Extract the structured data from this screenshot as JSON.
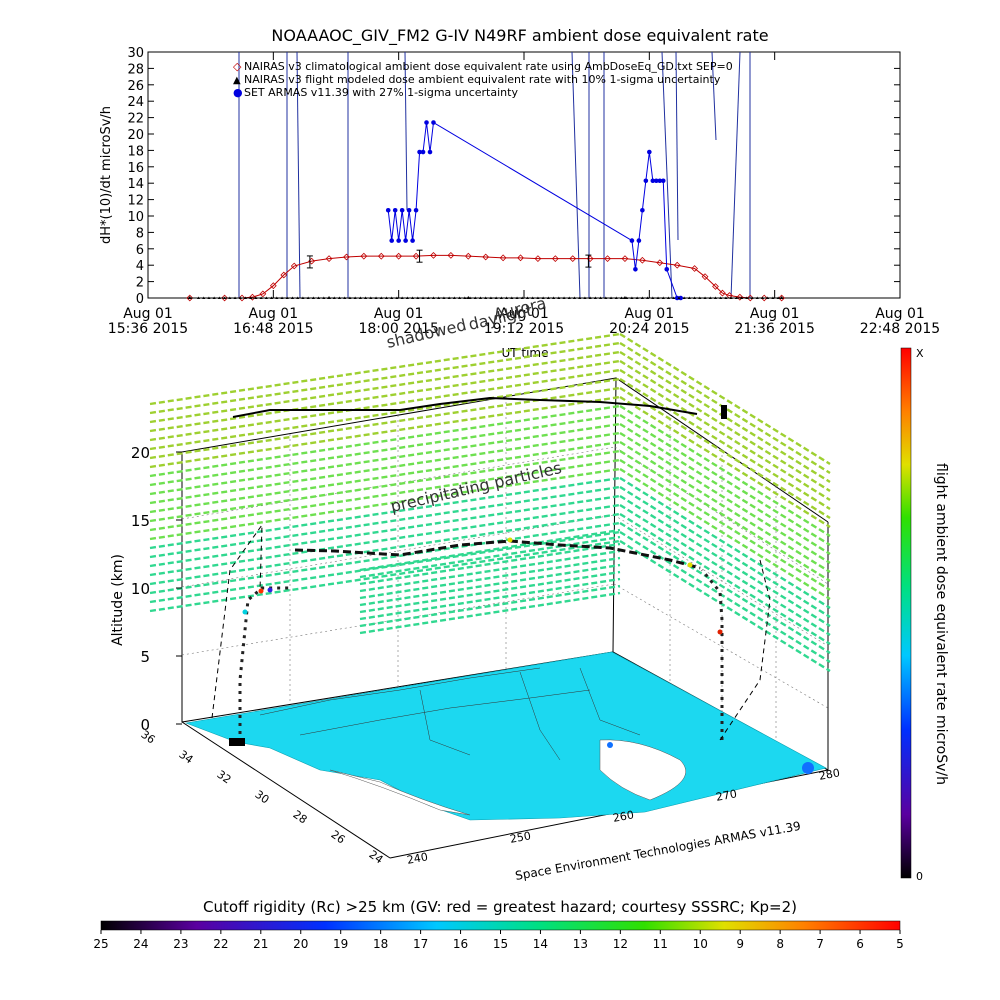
{
  "chart_data": [
    {
      "type": "line",
      "title": "NOAAAOC_GIV_FM2 G-IV   N49RF  ambient dose equivalent rate",
      "xlabel": "UT time",
      "ylabel": "dH*(10)/dt microSv/h",
      "ylim": [
        0,
        30
      ],
      "y_ticks": [
        "0",
        "2",
        "4",
        "6",
        "8",
        "10",
        "12",
        "14",
        "16",
        "18",
        "20",
        "22",
        "24",
        "26",
        "28",
        "30"
      ],
      "x_tick_top": [
        "Aug 01",
        "Aug 01",
        "Aug 01",
        "Aug 01",
        "Aug 01",
        "Aug 01",
        "Aug 01"
      ],
      "x_tick_bottom": [
        "15:36 2015",
        "16:48 2015",
        "18:00 2015",
        "19:12 2015",
        "20:24 2015",
        "21:36 2015",
        "22:48 2015"
      ],
      "overlay_labels": [
        "shadowed",
        "daylight",
        "Aurora"
      ],
      "legend": [
        {
          "symbol": "◇",
          "color": "#c00000",
          "label": "NAIRAS v3 climatological ambient dose equivalent rate using AmbDoseEq_GD.txt SEP=0"
        },
        {
          "symbol": "▲",
          "color": "#000000",
          "label": "NAIRAS v3 flight modeled dose ambient equivalent rate with 10% 1-sigma uncertainty"
        },
        {
          "symbol": "●",
          "color": "#0000e0",
          "label": "SET ARMAS v11.39 with 27% 1-sigma uncertainty"
        }
      ],
      "x_range_minutes": [
        936,
        1368
      ],
      "series": [
        {
          "name": "NAIRAS v3 climatological ambient dose equivalent rate using AmbDoseEq_GD.txt SEP=0",
          "color": "#c00000",
          "x": [
            960,
            980,
            990,
            996,
            1002,
            1008,
            1014,
            1020,
            1030,
            1040,
            1050,
            1060,
            1070,
            1080,
            1090,
            1100,
            1110,
            1120,
            1130,
            1140,
            1150,
            1160,
            1170,
            1180,
            1190,
            1200,
            1210,
            1220,
            1230,
            1240,
            1250,
            1256,
            1262,
            1266,
            1270,
            1276,
            1282,
            1290,
            1300
          ],
          "y": [
            0,
            0,
            0,
            0.1,
            0.5,
            1.5,
            2.8,
            3.9,
            4.5,
            4.8,
            5.0,
            5.1,
            5.1,
            5.1,
            5.1,
            5.2,
            5.2,
            5.1,
            5.0,
            4.9,
            4.9,
            4.8,
            4.8,
            4.8,
            4.8,
            4.8,
            4.8,
            4.6,
            4.3,
            4.0,
            3.6,
            2.6,
            1.4,
            0.6,
            0.3,
            0.1,
            0,
            0,
            0
          ]
        },
        {
          "name": "NAIRAS v3 flight modeled dose ambient equivalent rate with 10% 1-sigma uncertainty",
          "color": "#000000",
          "x": [
            960,
            1040,
            1120,
            1210,
            1300
          ],
          "y": [
            0,
            0,
            0,
            0,
            0
          ]
        },
        {
          "name": "SET ARMAS v11.39 with 27% 1-sigma uncertainty",
          "color": "#0000e0",
          "x": [
            1074,
            1076,
            1078,
            1080,
            1082,
            1084,
            1086,
            1088,
            1090,
            1092,
            1094,
            1096,
            1098,
            1100,
            1214,
            1216,
            1218,
            1220,
            1222,
            1224,
            1226,
            1228,
            1230,
            1232,
            1234,
            1240,
            1242
          ],
          "y": [
            10.7,
            7.0,
            10.7,
            7.0,
            10.7,
            7.0,
            10.7,
            7.0,
            10.7,
            17.8,
            17.8,
            21.4,
            17.8,
            21.4,
            7.0,
            3.5,
            7.0,
            10.7,
            14.3,
            17.8,
            14.3,
            14.3,
            14.3,
            14.3,
            3.5,
            0,
            0
          ]
        }
      ],
      "error_bars": {
        "x": [
          1029,
          1092,
          1189
        ],
        "y": [
          4.4,
          5.1,
          4.5
        ]
      }
    },
    {
      "type": "scatter",
      "subtype": "3d-flight-track",
      "zlabel": "Altitude (km)",
      "z_ticks": [
        "0",
        "5",
        "10",
        "15",
        "20"
      ],
      "lon_ticks": [
        "240",
        "250",
        "260",
        "270",
        "280"
      ],
      "lat_ticks": [
        "36",
        "34",
        "32",
        "30",
        "28",
        "26",
        "24"
      ],
      "plane_labels": [
        "shadowed",
        "daylight",
        "precipitating particles"
      ],
      "credit": "Space Environment Technologies ARMAS v11.39",
      "colorbar_label": "flight ambient dose equivalent rate microSv/h",
      "colorbar_top": "X",
      "colorbar_bottom": "0"
    },
    {
      "type": "colorbar",
      "title": "Cutoff rigidity (Rc) >25 km (GV: red = greatest hazard; courtesy SSSRC; Kp=2)",
      "ticks": [
        "25",
        "24",
        "23",
        "22",
        "21",
        "20",
        "19",
        "18",
        "17",
        "16",
        "15",
        "14",
        "13",
        "12",
        "11",
        "10",
        "9",
        "8",
        "7",
        "6",
        "5"
      ]
    }
  ]
}
